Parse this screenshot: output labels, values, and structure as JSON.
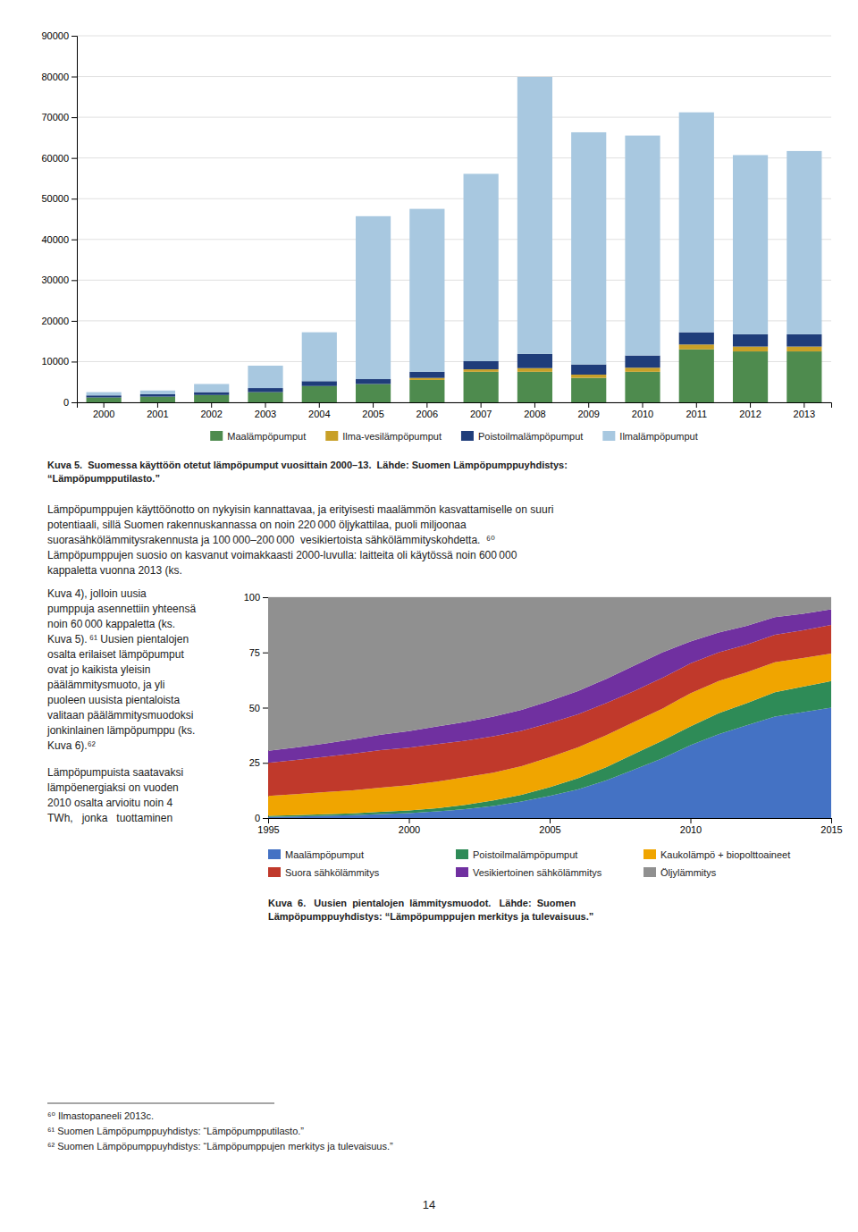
{
  "chart_data": [
    {
      "type": "bar",
      "stacked": true,
      "title": "Kuva 5.  Suomessa käyttöön otetut lämpöpumput vuosittain 2000–13.  Lähde: Suomen Lämpöpumppuyhdistys:\n“Lämpöpumpputilasto.”",
      "categories": [
        "2000",
        "2001",
        "2002",
        "2003",
        "2004",
        "2005",
        "2006",
        "2007",
        "2008",
        "2009",
        "2010",
        "2011",
        "2012",
        "2013"
      ],
      "series": [
        {
          "name": "Maalämpöpumput",
          "color": "#4e8b4e",
          "values": [
            1200,
            1400,
            1800,
            2500,
            4000,
            4500,
            5500,
            7500,
            7500,
            6000,
            7500,
            13000,
            12500,
            12500
          ]
        },
        {
          "name": "Ilma-vesilämpöpumput",
          "color": "#c8a028",
          "values": [
            0,
            0,
            0,
            0,
            0,
            0,
            500,
            600,
            900,
            800,
            1000,
            1200,
            1200,
            1200
          ]
        },
        {
          "name": "Poistoilmalämpöpumput",
          "color": "#1f3d7a",
          "values": [
            500,
            600,
            700,
            1000,
            1200,
            1200,
            1500,
            2000,
            3500,
            2500,
            3000,
            3000,
            3000,
            3000
          ]
        },
        {
          "name": "Ilmalämpöpumput",
          "color": "#a8c8e0",
          "values": [
            800,
            900,
            2000,
            5500,
            12000,
            40000,
            40000,
            46000,
            68000,
            57000,
            54000,
            54000,
            44000,
            45000
          ]
        }
      ],
      "ylim": [
        0,
        90000
      ],
      "yticks": [
        0,
        10000,
        20000,
        30000,
        40000,
        50000,
        60000,
        70000,
        80000,
        90000
      ],
      "grid": true,
      "legend": "bottom",
      "annotations": [
        "Lämpöpumppujen käyttöönotto on nykyisin kannattavaa, ja erityisesti maalämmön kasvattamiselle on suuri\npotentiaali, sillä Suomen rakennuskannassa on noin 220 000 öljykattilaa, puoli miljoonaa\nsuorasähkölämmitysrakennusta ja 100 000–200 000  vesikiertoista sähkölämmityskohdetta.  ⁶⁰\nLämpöpumppujen suosio on kasvanut voimakkaasti 2000-luvulla: laitteita oli käytössä noin 600 000\nkappaletta vuonna 2013 (ks.",
        "Kuva 4), jolloin uusia\npumppuja asennettiin yhteensä\nnoin 60 000 kappaletta (ks.\nKuva 5). ⁶¹ Uusien pientalojen\nosalta erilaiset lämpöpumput\novat jo kaikista yleisin\npäälämmitysmuoto, ja yli\npuoleen uusista pientaloista\nvalitaan päälämmitysmuodoksi\njonkinlainen lämpöpumppu (ks.\nKuva 6).⁶²"
      ]
    },
    {
      "type": "area",
      "stacked": true,
      "title": "Kuva  6.   Uusien  pientalojen  lämmitysmuodot.   Lähde:  Suomen\nLämpöpumppuyhdistys: “Lämpöpumppujen merkitys ja tulevaisuus.”",
      "x": [
        1995,
        1996,
        1997,
        1998,
        1999,
        2000,
        2001,
        2002,
        2003,
        2004,
        2005,
        2006,
        2007,
        2008,
        2009,
        2010,
        2011,
        2012,
        2013,
        2014,
        2015
      ],
      "series": [
        {
          "name": "Maalämpöpumput",
          "color": "#4472c4",
          "values": [
            0.5,
            0.7,
            1.0,
            1.3,
            1.8,
            2.2,
            3.0,
            4.0,
            5.5,
            7.5,
            10.0,
            13.0,
            17.0,
            22.0,
            27.0,
            33.0,
            38.0,
            42.0,
            46.0,
            48.0,
            50.0
          ]
        },
        {
          "name": "Poistoilmalämpöpumput",
          "color": "#2e8b57",
          "values": [
            0.5,
            0.6,
            0.7,
            0.8,
            1.0,
            1.2,
            1.5,
            2.0,
            2.5,
            3.0,
            4.0,
            5.0,
            6.0,
            7.0,
            8.0,
            8.5,
            9.5,
            10.0,
            11.0,
            11.5,
            12.0
          ]
        },
        {
          "name": "Kaukolämpö + biopolttoaineet",
          "color": "#f0a500",
          "values": [
            9.0,
            9.5,
            10.0,
            10.5,
            11.0,
            11.5,
            12.0,
            12.5,
            12.5,
            13.0,
            13.5,
            14.0,
            14.5,
            14.5,
            14.5,
            15.0,
            14.5,
            14.0,
            13.5,
            13.0,
            12.5
          ]
        },
        {
          "name": "Suora sähkölämmitys",
          "color": "#c0392b",
          "values": [
            15.0,
            15.5,
            16.0,
            16.5,
            17.0,
            17.0,
            17.0,
            16.5,
            16.5,
            16.0,
            15.5,
            15.0,
            14.5,
            14.0,
            14.0,
            13.5,
            13.0,
            12.5,
            12.5,
            12.5,
            13.0
          ]
        },
        {
          "name": "Vesikiertoinen sähkölämmitys",
          "color": "#7030a0",
          "values": [
            5.5,
            5.7,
            6.0,
            6.5,
            7.0,
            7.5,
            8.0,
            8.5,
            9.0,
            9.5,
            10.0,
            10.5,
            11.0,
            11.5,
            11.5,
            10.0,
            9.0,
            8.5,
            8.0,
            7.5,
            7.0
          ]
        },
        {
          "name": "Öljylämmitys",
          "color": "#909090",
          "values": [
            69.5,
            68.0,
            66.3,
            64.4,
            62.2,
            60.6,
            58.5,
            56.5,
            54.0,
            51.0,
            47.0,
            42.5,
            37.0,
            31.0,
            25.0,
            20.0,
            16.0,
            13.0,
            9.0,
            7.5,
            5.5
          ]
        }
      ],
      "xlim": [
        1995,
        2015
      ],
      "xticks": [
        1995,
        2000,
        2005,
        2010,
        2015
      ],
      "ylim": [
        0,
        100
      ],
      "yticks": [
        0,
        25,
        50,
        75,
        100
      ],
      "grid": true,
      "legend": "bottom left",
      "annotations": [
        "Lämpöpumpuista saatavaksi\nlämpöenergiaksi on vuoden\n2010 osalta arvioitu noin 4\nTWh,   jonka   tuottaminen",
        "⁶⁰ Ilmastopaneeli 2013c.\n⁶¹ Suomen Lämpöpumppuyhdistys: “Lämpöpumpputilasto.”\n⁶² Suomen Lämpöpumppuyhdistys: “Lämpöpumppujen merkitys ja tulevaisuus.”",
        "14"
      ]
    }
  ]
}
